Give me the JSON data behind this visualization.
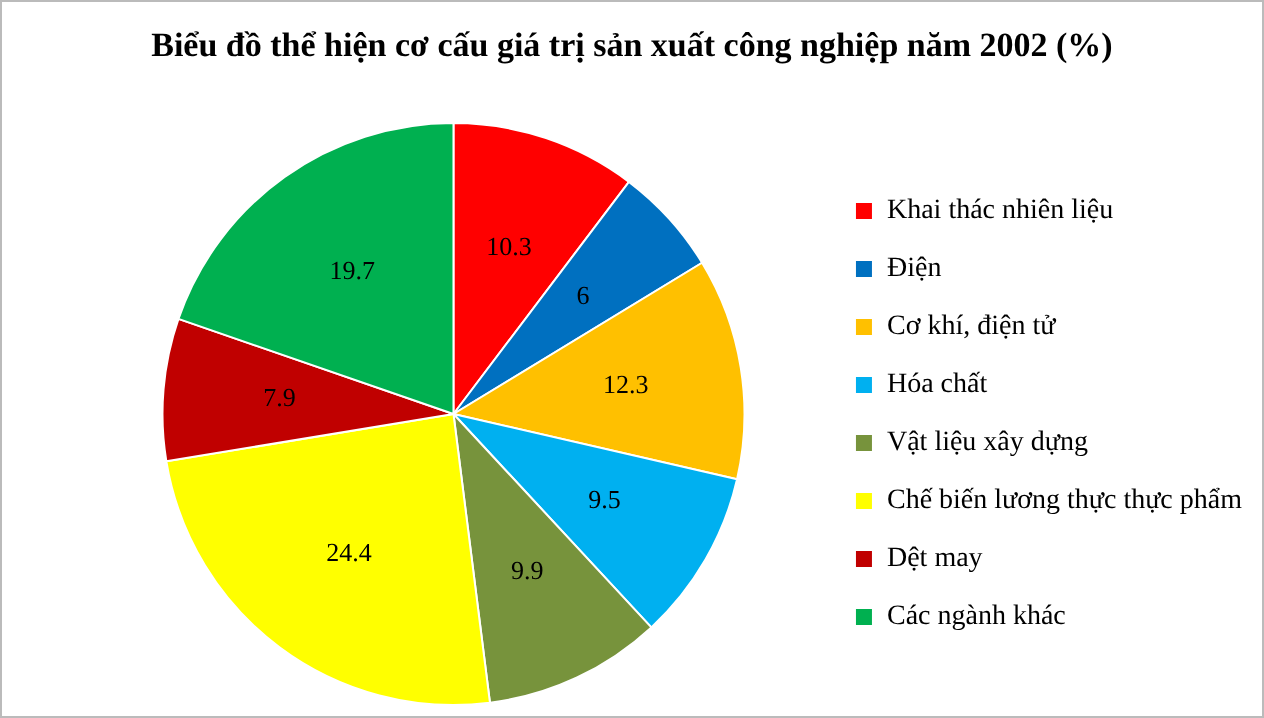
{
  "chart_data": {
    "type": "pie",
    "title": "Biểu đồ thể hiện cơ cấu giá trị sản xuất công nghiệp năm 2002 (%)",
    "categories": [
      "Khai thác nhiên liệu",
      "Điện",
      "Cơ khí, điện tử",
      "Hóa chất",
      "Vật liệu xây dựng",
      "Chế biến lương thực thực phẩm",
      "Dệt may",
      "Các ngành khác"
    ],
    "values": [
      10.3,
      6,
      12.3,
      9.5,
      9.9,
      24.4,
      7.9,
      19.7
    ],
    "colors": [
      "#ff0000",
      "#0070c0",
      "#ffc000",
      "#00b0f0",
      "#77933c",
      "#ffff00",
      "#c00000",
      "#00b050"
    ],
    "data_labels": true,
    "legend": "right"
  }
}
